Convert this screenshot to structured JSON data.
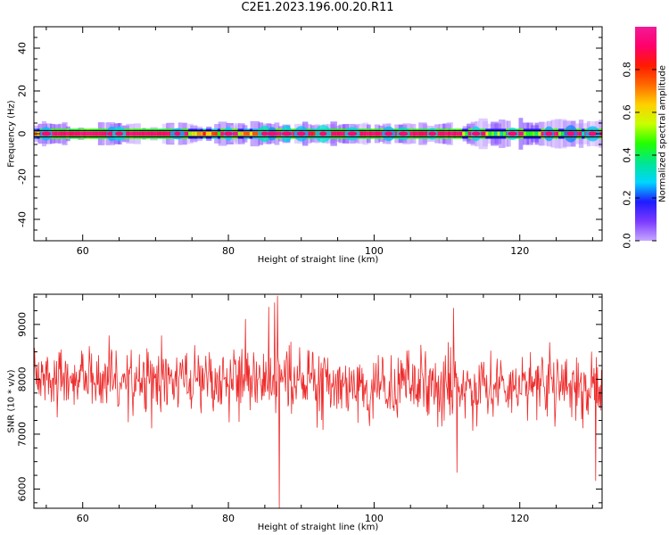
{
  "title": "C2E1.2023.196.00.20.R11",
  "chart_data": [
    {
      "type": "heatmap",
      "xlabel": "Height of straight line (km)",
      "ylabel": "Frequency (Hz)",
      "xlim": [
        53.3,
        131.3
      ],
      "ylim": [
        -50,
        50
      ],
      "xticks": [
        60,
        80,
        100,
        120
      ],
      "yticks": [
        -40,
        -20,
        0,
        20,
        40
      ],
      "colorbar": {
        "label": "Normalized spectral amplitude",
        "range": [
          0,
          1
        ],
        "ticks": [
          "0.0",
          "0.2",
          "0.4",
          "0.6",
          "0.8"
        ],
        "colormap": [
          "#ffffff",
          "#c7a6ff",
          "#7b39ff",
          "#1f1bff",
          "#00d6ff",
          "#00e693",
          "#22ff00",
          "#c8ff00",
          "#ffd000",
          "#ff6a00",
          "#ff1a00",
          "#ff006a",
          "#f21a96"
        ]
      },
      "band": {
        "center_hz": 0,
        "half_width_hz": 1.5
      },
      "hotspots_x": [
        55,
        64,
        65,
        73,
        80,
        85,
        86,
        88,
        90,
        93,
        97,
        102,
        104,
        108,
        114,
        119,
        124,
        127,
        130
      ],
      "bright_segments_x": [
        [
          55,
          63
        ],
        [
          66,
          72
        ],
        [
          92,
          101
        ],
        [
          105,
          112
        ]
      ],
      "grid": false
    },
    {
      "type": "line",
      "xlabel": "Height of straight line (km)",
      "ylabel": "SNR (10 * v/v)",
      "xlim": [
        53.3,
        131.3
      ],
      "ylim": [
        5650,
        9550
      ],
      "xticks": [
        60,
        80,
        100,
        120
      ],
      "yticks": [
        6000,
        7000,
        8000,
        9000
      ],
      "series": [
        {
          "color": "#ee2a2a",
          "mean": 8000,
          "std": 420,
          "spikes": [
            [
              70.8,
              8800
            ],
            [
              82.3,
              9100
            ],
            [
              85.5,
              9320
            ],
            [
              86.3,
              9400
            ],
            [
              87.0,
              5650
            ],
            [
              86.7,
              9520
            ],
            [
              110.9,
              9300
            ],
            [
              111.4,
              6300
            ],
            [
              130.4,
              6150
            ]
          ]
        }
      ],
      "grid": false
    }
  ]
}
